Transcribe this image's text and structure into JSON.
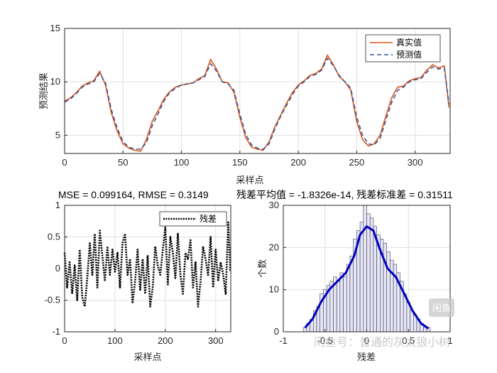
{
  "chart_data": [
    {
      "type": "line",
      "xlabel": "采样点",
      "ylabel": "预测结果",
      "xlim": [
        0,
        330
      ],
      "ylim": [
        3.3,
        15
      ],
      "xticks": [
        0,
        50,
        100,
        150,
        200,
        250,
        300
      ],
      "yticks": [
        5,
        10,
        15
      ],
      "grid": true,
      "legend_position": "top-right",
      "x": [
        0,
        5,
        10,
        15,
        20,
        25,
        30,
        35,
        40,
        45,
        50,
        55,
        60,
        65,
        70,
        75,
        80,
        85,
        90,
        95,
        100,
        105,
        110,
        115,
        120,
        125,
        130,
        135,
        140,
        145,
        150,
        155,
        160,
        165,
        170,
        175,
        180,
        185,
        190,
        195,
        200,
        205,
        210,
        215,
        220,
        225,
        230,
        235,
        240,
        245,
        250,
        255,
        260,
        265,
        270,
        275,
        280,
        285,
        290,
        295,
        300,
        305,
        310,
        315,
        320,
        325,
        329
      ],
      "series": [
        {
          "name": "真实值",
          "color": "#D95319",
          "dash": "solid",
          "values": [
            8.2,
            8.5,
            9.0,
            9.6,
            9.9,
            10.1,
            11.0,
            9.7,
            7.1,
            5.4,
            4.2,
            3.8,
            3.6,
            3.5,
            4.6,
            6.3,
            7.3,
            8.4,
            9.1,
            9.5,
            9.7,
            9.8,
            9.9,
            10.3,
            10.6,
            12.1,
            11.2,
            10.0,
            9.9,
            9.0,
            6.7,
            4.8,
            3.9,
            3.7,
            3.6,
            4.4,
            5.8,
            6.9,
            8.0,
            9.0,
            9.7,
            10.1,
            10.6,
            10.8,
            11.2,
            12.5,
            11.6,
            10.5,
            10.0,
            9.2,
            6.3,
            4.6,
            4.0,
            4.2,
            5.0,
            6.8,
            8.5,
            9.5,
            9.6,
            10.1,
            10.3,
            10.4,
            11.1,
            11.6,
            11.3,
            11.5,
            7.6
          ]
        },
        {
          "name": "预测值",
          "color": "#3B5998",
          "dash": "dashed",
          "values": [
            8.1,
            8.4,
            8.9,
            9.5,
            9.8,
            10.0,
            10.8,
            9.9,
            7.4,
            5.7,
            4.4,
            3.9,
            3.7,
            3.7,
            4.3,
            5.9,
            7.0,
            8.2,
            9.0,
            9.4,
            9.7,
            9.8,
            9.9,
            10.2,
            10.5,
            11.7,
            11.0,
            10.0,
            9.8,
            9.2,
            7.0,
            5.1,
            4.1,
            3.8,
            3.7,
            4.2,
            5.6,
            6.8,
            7.8,
            8.8,
            9.6,
            10.0,
            10.5,
            10.7,
            11.1,
            12.2,
            11.5,
            10.6,
            10.0,
            9.4,
            6.7,
            5.0,
            4.2,
            4.1,
            4.7,
            6.4,
            8.1,
            9.2,
            9.5,
            10.0,
            10.2,
            10.3,
            10.9,
            11.4,
            11.2,
            11.3,
            7.9
          ]
        }
      ]
    },
    {
      "type": "line",
      "title": "MSE = 0.099164, RMSE = 0.3149",
      "xlabel": "采样点",
      "xlim": [
        0,
        330
      ],
      "ylim": [
        -1,
        1
      ],
      "xticks": [
        0,
        100,
        200,
        300
      ],
      "yticks": [
        -1,
        -0.5,
        0,
        0.5,
        1
      ],
      "grid": true,
      "legend_position": "top-right",
      "x": [
        0,
        5,
        10,
        15,
        20,
        25,
        30,
        35,
        40,
        45,
        50,
        55,
        60,
        65,
        70,
        75,
        80,
        85,
        90,
        95,
        100,
        105,
        110,
        115,
        120,
        125,
        130,
        135,
        140,
        145,
        150,
        155,
        160,
        165,
        170,
        175,
        180,
        185,
        190,
        195,
        200,
        205,
        210,
        215,
        220,
        225,
        230,
        235,
        240,
        245,
        250,
        255,
        260,
        265,
        270,
        275,
        280,
        285,
        290,
        295,
        300,
        305,
        310,
        315,
        320,
        325,
        329
      ],
      "series": [
        {
          "name": "残差",
          "color": "#000000",
          "dash": "dotted",
          "values": [
            0.25,
            -0.3,
            0.1,
            -0.4,
            0.05,
            -0.5,
            0.3,
            -0.45,
            -0.6,
            -0.15,
            0.4,
            -0.1,
            0.55,
            -0.3,
            0.6,
            0.2,
            -0.2,
            0.35,
            -0.1,
            0.3,
            -0.05,
            0.25,
            -0.3,
            0.4,
            0.55,
            -0.1,
            0.15,
            -0.55,
            -0.2,
            0.3,
            -0.35,
            0.15,
            -0.4,
            0.2,
            -0.6,
            -0.3,
            0.35,
            0.05,
            -0.1,
            0.3,
            0.65,
            -0.25,
            0.5,
            0.25,
            -0.15,
            0.55,
            -0.1,
            -0.4,
            0.25,
            0.15,
            0.45,
            -0.3,
            0.1,
            -0.6,
            -0.2,
            0.35,
            0.15,
            -0.1,
            0.5,
            -0.3,
            0.3,
            -0.2,
            0.1,
            -0.1,
            -0.4,
            0.75,
            -0.05
          ]
        }
      ]
    },
    {
      "type": "bar",
      "title": "残差平均值 = -1.8326e-14, 残差标准差 = 0.31511",
      "xlabel": "残差",
      "ylabel": "个数",
      "xlim": [
        -1,
        1
      ],
      "ylim": [
        0,
        30
      ],
      "xticks": [
        -1,
        -0.5,
        0,
        0.5,
        1
      ],
      "yticks": [
        0,
        10,
        20,
        30
      ],
      "grid": true,
      "bin_width": 0.04,
      "bin_starts": [
        -0.76,
        -0.72,
        -0.68,
        -0.64,
        -0.6,
        -0.56,
        -0.52,
        -0.48,
        -0.44,
        -0.4,
        -0.36,
        -0.32,
        -0.28,
        -0.24,
        -0.2,
        -0.16,
        -0.12,
        -0.08,
        -0.04,
        0.0,
        0.04,
        0.08,
        0.12,
        0.16,
        0.2,
        0.24,
        0.28,
        0.32,
        0.36,
        0.4,
        0.44,
        0.48,
        0.52,
        0.56,
        0.6,
        0.64,
        0.68,
        0.72
      ],
      "values": [
        1,
        2,
        3,
        5,
        6,
        9,
        10,
        11,
        12,
        13,
        12,
        14,
        13,
        16,
        18,
        22,
        24,
        26,
        30,
        28,
        27,
        25,
        23,
        22,
        21,
        19,
        17,
        16,
        14,
        12,
        9,
        7,
        5,
        4,
        3,
        2,
        1,
        1
      ],
      "bar_color": "#E6E6F5",
      "fit_curve": {
        "color": "#0000C0",
        "x": [
          -0.74,
          -0.65,
          -0.55,
          -0.45,
          -0.35,
          -0.25,
          -0.15,
          -0.08,
          0.0,
          0.08,
          0.15,
          0.25,
          0.35,
          0.45,
          0.55,
          0.65,
          0.74
        ],
        "y": [
          1,
          3,
          7,
          10,
          12,
          14,
          18,
          23,
          25,
          24,
          20,
          15,
          13,
          9,
          5,
          2,
          0.8
        ]
      }
    }
  ],
  "watermark": {
    "logo_text": "闲鱼",
    "line_text": "闲鱼号：普通的灰太狼小树"
  }
}
